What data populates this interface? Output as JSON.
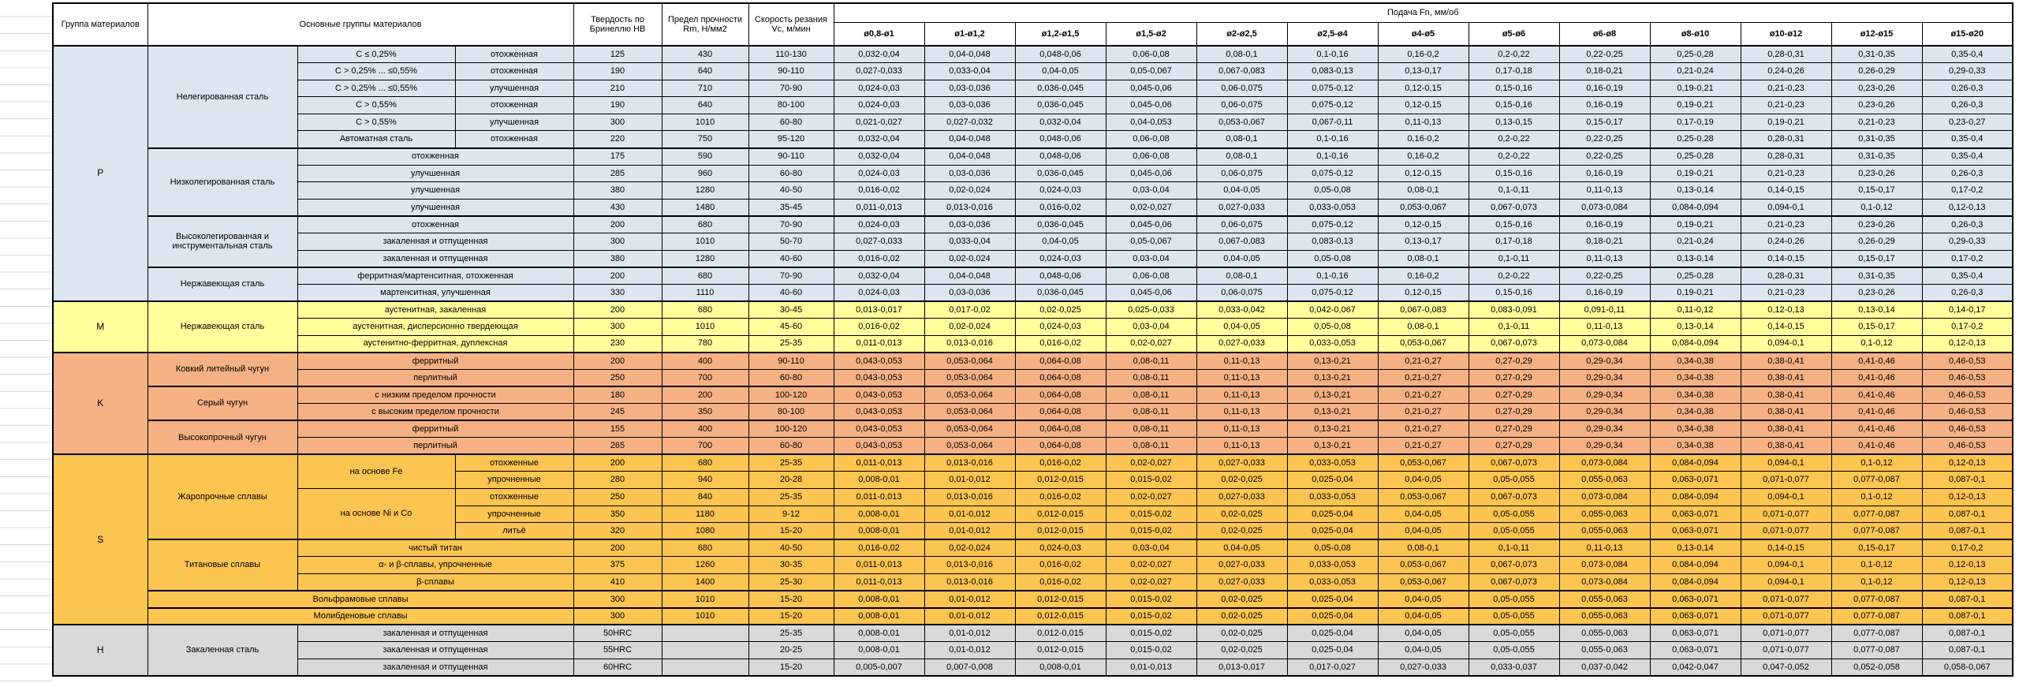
{
  "header": {
    "group_col": "Группа материалов",
    "materials_col": "Основные группы материалов",
    "hardness_col": "Твердость по Бринеллю HB",
    "strength_col": "Предел прочности Rm, Н/мм2",
    "speed_col": "Скорость резания Vc, м/мин",
    "feed_col": "Подача Fn, мм/об",
    "diameters": [
      "ø0,8-ø1",
      "ø1-ø1,2",
      "ø1,2-ø1,5",
      "ø1,5-ø2",
      "ø2-ø2,5",
      "ø2,5-ø4",
      "ø4-ø5",
      "ø5-ø6",
      "ø6-ø8",
      "ø8-ø10",
      "ø10-ø12",
      "ø12-ø15",
      "ø15-ø20"
    ]
  },
  "feed_patterns": {
    "A": [
      "0,032-0,04",
      "0,04-0,048",
      "0,048-0,06",
      "0,06-0,08",
      "0,08-0,1",
      "0,1-0,16",
      "0,16-0,2",
      "0,2-0,22",
      "0,22-0,25",
      "0,25-0,28",
      "0,28-0,31",
      "0,31-0,35",
      "0,35-0,4"
    ],
    "B": [
      "0,027-0,033",
      "0,033-0,04",
      "0,04-0,05",
      "0,05-0,067",
      "0,067-0,083",
      "0,083-0,13",
      "0,13-0,17",
      "0,17-0,18",
      "0,18-0,21",
      "0,21-0,24",
      "0,24-0,26",
      "0,26-0,29",
      "0,29-0,33"
    ],
    "C": [
      "0,024-0,03",
      "0,03-0,036",
      "0,036-0,045",
      "0,045-0,06",
      "0,06-0,075",
      "0,075-0,12",
      "0,12-0,15",
      "0,15-0,16",
      "0,16-0,19",
      "0,19-0,21",
      "0,21-0,23",
      "0,23-0,26",
      "0,26-0,3"
    ],
    "D": [
      "0,021-0,027",
      "0,027-0,032",
      "0,032-0,04",
      "0,04-0,053",
      "0,053-0,067",
      "0,067-0,11",
      "0,11-0,13",
      "0,13-0,15",
      "0,15-0,17",
      "0,17-0,19",
      "0,19-0,21",
      "0,21-0,23",
      "0,23-0,27"
    ],
    "E": [
      "0,016-0,02",
      "0,02-0,024",
      "0,024-0,03",
      "0,03-0,04",
      "0,04-0,05",
      "0,05-0,08",
      "0,08-0,1",
      "0,1-0,11",
      "0,11-0,13",
      "0,13-0,14",
      "0,14-0,15",
      "0,15-0,17",
      "0,17-0,2"
    ],
    "F": [
      "0,011-0,013",
      "0,013-0,016",
      "0,016-0,02",
      "0,02-0,027",
      "0,027-0,033",
      "0,033-0,053",
      "0,053-0,067",
      "0,067-0,073",
      "0,073-0,084",
      "0,084-0,094",
      "0,094-0,1",
      "0,1-0,12",
      "0,12-0,13"
    ],
    "G": [
      "0,013-0,017",
      "0,017-0,02",
      "0,02-0,025",
      "0,025-0,033",
      "0,033-0,042",
      "0,042-0,067",
      "0,067-0,083",
      "0,083-0,091",
      "0,091-0,11",
      "0,11-0,12",
      "0,12-0,13",
      "0,13-0,14",
      "0,14-0,17"
    ],
    "K": [
      "0,043-0,053",
      "0,053-0,064",
      "0,064-0,08",
      "0,08-0,11",
      "0,11-0,13",
      "0,13-0,21",
      "0,21-0,27",
      "0,27-0,29",
      "0,29-0,34",
      "0,34-0,38",
      "0,38-0,41",
      "0,41-0,46",
      "0,46-0,53"
    ],
    "H": [
      "0,008-0,01",
      "0,01-0,012",
      "0,012-0,015",
      "0,015-0,02",
      "0,02-0,025",
      "0,025-0,04",
      "0,04-0,05",
      "0,05-0,055",
      "0,055-0,063",
      "0,063-0,071",
      "0,071-0,077",
      "0,077-0,087",
      "0,087-0,1"
    ],
    "I": [
      "0,005-0,007",
      "0,007-0,008",
      "0,008-0,01",
      "0,01-0,013",
      "0,013-0,017",
      "0,017-0,027",
      "0,027-0,033",
      "0,033-0,037",
      "0,037-0,042",
      "0,042-0,047",
      "0,047-0,052",
      "0,052-0,058",
      "0,058-0,067"
    ]
  },
  "groups": [
    {
      "code": "P",
      "color": "#dce6f1",
      "rows": [
        {
          "labels": [
            {
              "t": "Нелегированная сталь",
              "rs": 6,
              "n": "family"
            },
            {
              "t": "C ≤ 0,25%",
              "n": "subtype"
            },
            {
              "t": "отохженная",
              "n": "condition"
            }
          ],
          "hb": "125",
          "rm": "430",
          "vc": "110-130",
          "fp": "A"
        },
        {
          "labels": [
            {
              "t": "C > 0,25% ... ≤0,55%",
              "n": "subtype"
            },
            {
              "t": "отохженная",
              "n": "condition"
            }
          ],
          "hb": "190",
          "rm": "640",
          "vc": "90-110",
          "fp": "B"
        },
        {
          "labels": [
            {
              "t": "C > 0,25% ... ≤0,55%",
              "n": "subtype"
            },
            {
              "t": "улучшенная",
              "n": "condition"
            }
          ],
          "hb": "210",
          "rm": "710",
          "vc": "70-90",
          "fp": "C"
        },
        {
          "labels": [
            {
              "t": "C > 0,55%",
              "n": "subtype"
            },
            {
              "t": "отохженная",
              "n": "condition"
            }
          ],
          "hb": "190",
          "rm": "640",
          "vc": "80-100",
          "fp": "C"
        },
        {
          "labels": [
            {
              "t": "C > 0,55%",
              "n": "subtype"
            },
            {
              "t": "улучшенная",
              "n": "condition"
            }
          ],
          "hb": "300",
          "rm": "1010",
          "vc": "60-80",
          "fp": "D"
        },
        {
          "labels": [
            {
              "t": "Автоматная сталь",
              "n": "subtype"
            },
            {
              "t": "отохженная",
              "n": "condition"
            }
          ],
          "hb": "220",
          "rm": "750",
          "vc": "95-120",
          "fp": "A"
        },
        {
          "nf": true,
          "labels": [
            {
              "t": "Низколегированная сталь",
              "rs": 4,
              "n": "family"
            },
            {
              "t": "отохженная",
              "cs": 2,
              "n": "condition"
            }
          ],
          "hb": "175",
          "rm": "590",
          "vc": "90-110",
          "fp": "A"
        },
        {
          "labels": [
            {
              "t": "улучшенная",
              "cs": 2,
              "n": "condition"
            }
          ],
          "hb": "285",
          "rm": "960",
          "vc": "60-80",
          "fp": "C"
        },
        {
          "labels": [
            {
              "t": "улучшенная",
              "cs": 2,
              "n": "condition"
            }
          ],
          "hb": "380",
          "rm": "1280",
          "vc": "40-50",
          "fp": "E"
        },
        {
          "labels": [
            {
              "t": "улучшенная",
              "cs": 2,
              "n": "condition"
            }
          ],
          "hb": "430",
          "rm": "1480",
          "vc": "35-45",
          "fp": "F"
        },
        {
          "nf": true,
          "labels": [
            {
              "t": "Высоколегированная и инструментальная сталь",
              "rs": 3,
              "n": "family"
            },
            {
              "t": "отохженная",
              "cs": 2,
              "n": "condition"
            }
          ],
          "hb": "200",
          "rm": "680",
          "vc": "70-90",
          "fp": "C"
        },
        {
          "labels": [
            {
              "t": "закаленная и отпущенная",
              "cs": 2,
              "n": "condition"
            }
          ],
          "hb": "300",
          "rm": "1010",
          "vc": "50-70",
          "fp": "B"
        },
        {
          "labels": [
            {
              "t": "закаленная и отпущенная",
              "cs": 2,
              "n": "condition"
            }
          ],
          "hb": "380",
          "rm": "1280",
          "vc": "40-60",
          "fp": "E"
        },
        {
          "nf": true,
          "labels": [
            {
              "t": "Нержавеющая сталь",
              "rs": 2,
              "n": "family"
            },
            {
              "t": "ферритная/мартенситная, отохженная",
              "cs": 2,
              "n": "condition"
            }
          ],
          "hb": "200",
          "rm": "680",
          "vc": "70-90",
          "fp": "A"
        },
        {
          "labels": [
            {
              "t": "мартенситная, улучшенная",
              "cs": 2,
              "n": "condition"
            }
          ],
          "hb": "330",
          "rm": "1110",
          "vc": "40-60",
          "fp": "C"
        }
      ]
    },
    {
      "code": "M",
      "color": "#ffff9c",
      "rows": [
        {
          "labels": [
            {
              "t": "Нержавеющая сталь",
              "rs": 3,
              "n": "family"
            },
            {
              "t": "аустенитная, закаленная",
              "cs": 2,
              "n": "condition"
            }
          ],
          "hb": "200",
          "rm": "680",
          "vc": "30-45",
          "fp": "G"
        },
        {
          "labels": [
            {
              "t": "аустенитная, дисперсионно твердеющая",
              "cs": 2,
              "n": "condition"
            }
          ],
          "hb": "300",
          "rm": "1010",
          "vc": "45-60",
          "fp": "E"
        },
        {
          "labels": [
            {
              "t": "аустенитно-ферритная, дуплексная",
              "cs": 2,
              "n": "condition"
            }
          ],
          "hb": "230",
          "rm": "780",
          "vc": "25-35",
          "fp": "F"
        }
      ]
    },
    {
      "code": "K",
      "color": "#f5b183",
      "rows": [
        {
          "labels": [
            {
              "t": "Ковкий литейный чугун",
              "rs": 2,
              "n": "family"
            },
            {
              "t": "ферритный",
              "cs": 2,
              "n": "condition"
            }
          ],
          "hb": "200",
          "rm": "400",
          "vc": "90-110",
          "fp": "K"
        },
        {
          "labels": [
            {
              "t": "перлитный",
              "cs": 2,
              "n": "condition"
            }
          ],
          "hb": "250",
          "rm": "700",
          "vc": "60-80",
          "fp": "K"
        },
        {
          "nf": true,
          "labels": [
            {
              "t": "Серый чугун",
              "rs": 2,
              "n": "family"
            },
            {
              "t": "с низким пределом прочности",
              "cs": 2,
              "n": "condition"
            }
          ],
          "hb": "180",
          "rm": "200",
          "vc": "100-120",
          "fp": "K"
        },
        {
          "labels": [
            {
              "t": "с высоким пределом прочности",
              "cs": 2,
              "n": "condition"
            }
          ],
          "hb": "245",
          "rm": "350",
          "vc": "80-100",
          "fp": "K"
        },
        {
          "nf": true,
          "labels": [
            {
              "t": "Высокопрочный чугун",
              "rs": 2,
              "n": "family"
            },
            {
              "t": "ферритный",
              "cs": 2,
              "n": "condition"
            }
          ],
          "hb": "155",
          "rm": "400",
          "vc": "100-120",
          "fp": "K"
        },
        {
          "labels": [
            {
              "t": "перлитный",
              "cs": 2,
              "n": "condition"
            }
          ],
          "hb": "265",
          "rm": "700",
          "vc": "60-80",
          "fp": "K"
        }
      ]
    },
    {
      "code": "S",
      "color": "#fcc450",
      "rows": [
        {
          "labels": [
            {
              "t": "Жаропрочные сплавы",
              "rs": 5,
              "n": "family"
            },
            {
              "t": "на основе Fe",
              "rs": 2,
              "n": "subtype"
            },
            {
              "t": "отохженные",
              "n": "condition"
            }
          ],
          "hb": "200",
          "rm": "680",
          "vc": "25-35",
          "fp": "F"
        },
        {
          "labels": [
            {
              "t": "упрочненные",
              "n": "condition"
            }
          ],
          "hb": "280",
          "rm": "940",
          "vc": "20-28",
          "fp": "H"
        },
        {
          "labels": [
            {
              "t": "на основе Ni и Co",
              "rs": 3,
              "n": "subtype"
            },
            {
              "t": "отохженные",
              "n": "condition"
            }
          ],
          "hb": "250",
          "rm": "840",
          "vc": "25-35",
          "fp": "F"
        },
        {
          "labels": [
            {
              "t": "упрочненные",
              "n": "condition"
            }
          ],
          "hb": "350",
          "rm": "1180",
          "vc": "9-12",
          "fp": "H"
        },
        {
          "labels": [
            {
              "t": "литьё",
              "n": "condition"
            }
          ],
          "hb": "320",
          "rm": "1080",
          "vc": "15-20",
          "fp": "H"
        },
        {
          "nf": true,
          "labels": [
            {
              "t": "Титановые сплавы",
              "rs": 3,
              "n": "family"
            },
            {
              "t": "чистый титан",
              "cs": 2,
              "n": "condition"
            }
          ],
          "hb": "200",
          "rm": "680",
          "vc": "40-50",
          "fp": "E"
        },
        {
          "labels": [
            {
              "t": "α- и β-сплавы, упрочненные",
              "cs": 2,
              "n": "condition"
            }
          ],
          "hb": "375",
          "rm": "1260",
          "vc": "30-35",
          "fp": "F"
        },
        {
          "labels": [
            {
              "t": "β-сплавы",
              "cs": 2,
              "n": "condition"
            }
          ],
          "hb": "410",
          "rm": "1400",
          "vc": "25-30",
          "fp": "F"
        },
        {
          "nf": true,
          "labels": [
            {
              "t": "Вольфрамовые сплавы",
              "cs": 3,
              "n": "material"
            }
          ],
          "hb": "300",
          "rm": "1010",
          "vc": "15-20",
          "fp": "H"
        },
        {
          "nf": true,
          "labels": [
            {
              "t": "Молибденовые сплавы",
              "cs": 3,
              "n": "material"
            }
          ],
          "hb": "300",
          "rm": "1010",
          "vc": "15-20",
          "fp": "H"
        }
      ]
    },
    {
      "code": "H",
      "color": "#d9d9d9",
      "rows": [
        {
          "labels": [
            {
              "t": "Закаленная сталь",
              "rs": 3,
              "n": "family"
            },
            {
              "t": "закаленная и отпущенная",
              "cs": 2,
              "n": "condition"
            }
          ],
          "hb": "50HRC",
          "rm": "",
          "vc": "25-35",
          "fp": "H"
        },
        {
          "labels": [
            {
              "t": "закаленная и отпущенная",
              "cs": 2,
              "n": "condition"
            }
          ],
          "hb": "55HRC",
          "rm": "",
          "vc": "20-25",
          "fp": "H"
        },
        {
          "labels": [
            {
              "t": "закаленная и отпущенная",
              "cs": 2,
              "n": "condition"
            }
          ],
          "hb": "60HRC",
          "rm": "",
          "vc": "15-20",
          "fp": "I"
        }
      ]
    }
  ]
}
